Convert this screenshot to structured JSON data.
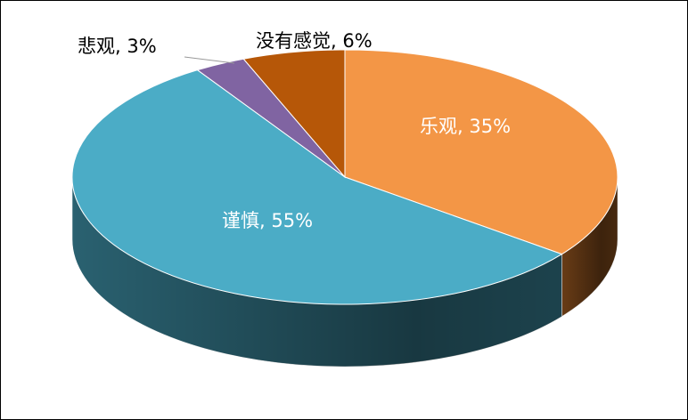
{
  "chart_data": {
    "type": "pie",
    "style": "3d",
    "start": "12 o'clock, clockwise",
    "slices": [
      {
        "label": "乐观",
        "value": 35,
        "display": "乐观, 35%",
        "color": "#F39646",
        "side": "#6E3F17",
        "label_pos": "inside"
      },
      {
        "label": "谨慎",
        "value": 55,
        "display": "谨慎, 55%",
        "color": "#4BACC6",
        "side": "#2C6676",
        "label_pos": "inside"
      },
      {
        "label": "悲观",
        "value": 3,
        "display": "悲观, 3%",
        "color": "#8064A2",
        "side": "#4B3A60",
        "label_pos": "outside"
      },
      {
        "label": "没有感觉",
        "value": 6,
        "display": "没有感觉, 6%",
        "color": "#B65708",
        "side": "#6A3204",
        "label_pos": "outside"
      }
    ]
  }
}
